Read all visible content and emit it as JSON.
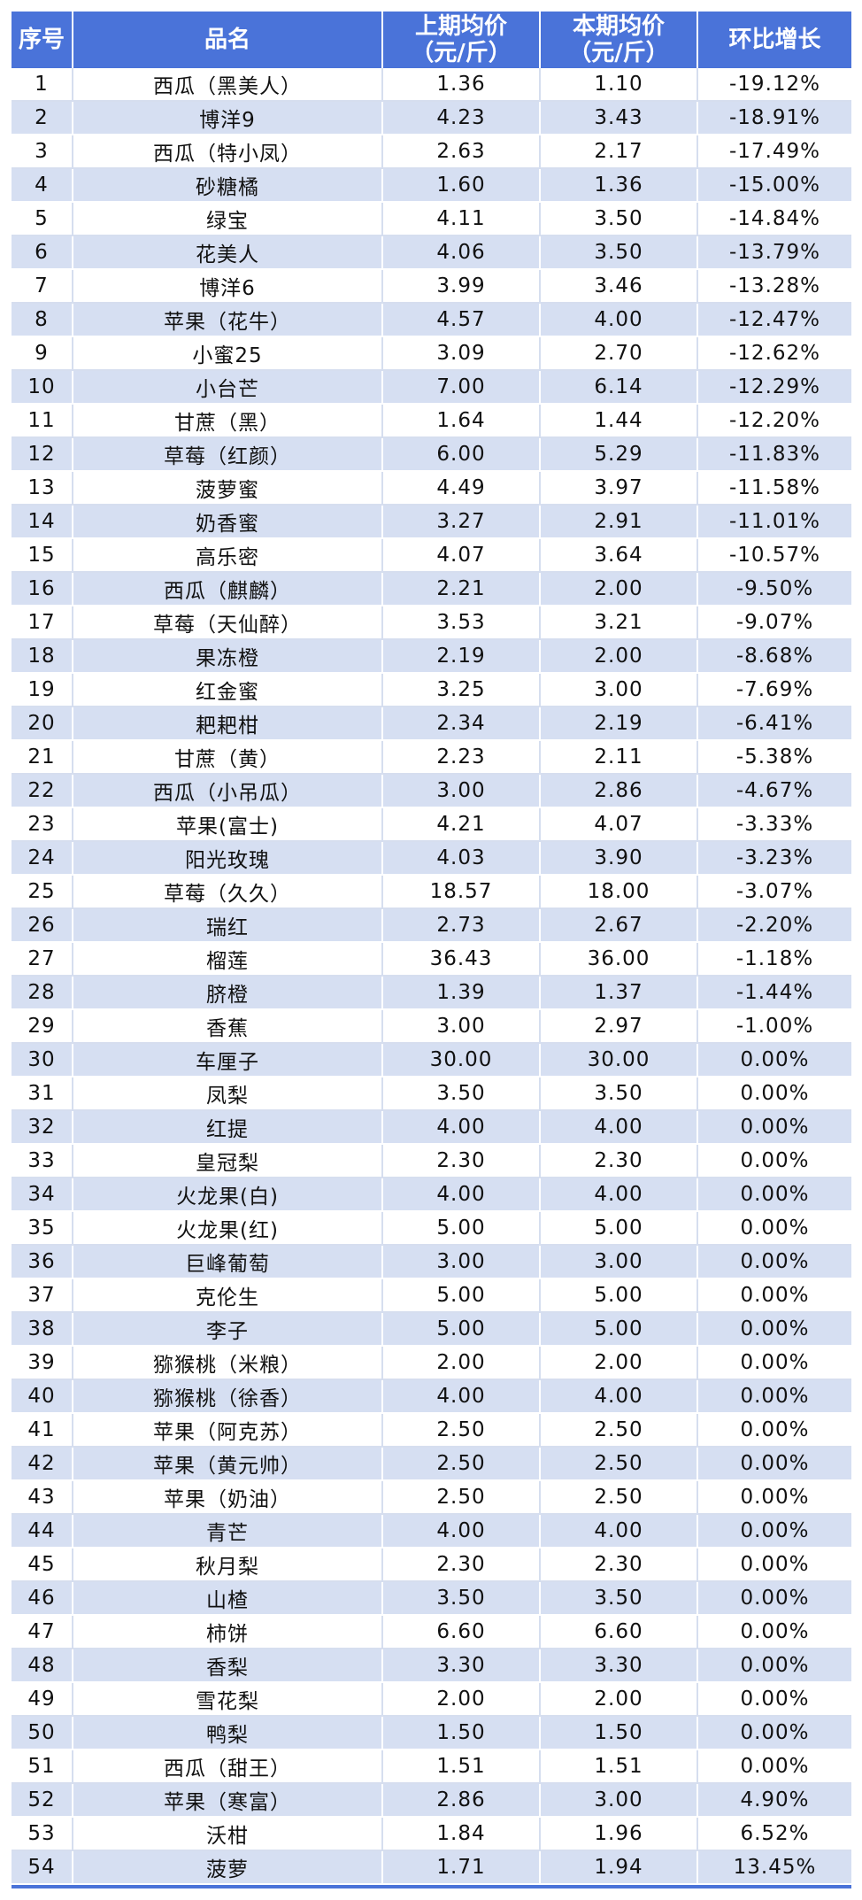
{
  "headers": {
    "index": "序号",
    "name": "品名",
    "prev_line1": "上期均价",
    "prev_line2": "（元/斤）",
    "curr_line1": "本期均价",
    "curr_line2": "（元/斤）",
    "change": "环比增长"
  },
  "colors": {
    "header_bg": "#4a73d9",
    "stripe": "#d6dff2"
  },
  "rows": [
    [
      "1",
      "西瓜（黑美人）",
      "1.36",
      "1.10",
      "-19.12%"
    ],
    [
      "2",
      "博洋9",
      "4.23",
      "3.43",
      "-18.91%"
    ],
    [
      "3",
      "西瓜（特小凤）",
      "2.63",
      "2.17",
      "-17.49%"
    ],
    [
      "4",
      "砂糖橘",
      "1.60",
      "1.36",
      "-15.00%"
    ],
    [
      "5",
      "绿宝",
      "4.11",
      "3.50",
      "-14.84%"
    ],
    [
      "6",
      "花美人",
      "4.06",
      "3.50",
      "-13.79%"
    ],
    [
      "7",
      "博洋6",
      "3.99",
      "3.46",
      "-13.28%"
    ],
    [
      "8",
      "苹果（花牛）",
      "4.57",
      "4.00",
      "-12.47%"
    ],
    [
      "9",
      "小蜜25",
      "3.09",
      "2.70",
      "-12.62%"
    ],
    [
      "10",
      "小台芒",
      "7.00",
      "6.14",
      "-12.29%"
    ],
    [
      "11",
      "甘蔗（黑）",
      "1.64",
      "1.44",
      "-12.20%"
    ],
    [
      "12",
      "草莓（红颜）",
      "6.00",
      "5.29",
      "-11.83%"
    ],
    [
      "13",
      "菠萝蜜",
      "4.49",
      "3.97",
      "-11.58%"
    ],
    [
      "14",
      "奶香蜜",
      "3.27",
      "2.91",
      "-11.01%"
    ],
    [
      "15",
      "高乐密",
      "4.07",
      "3.64",
      "-10.57%"
    ],
    [
      "16",
      "西瓜（麒麟）",
      "2.21",
      "2.00",
      "-9.50%"
    ],
    [
      "17",
      "草莓（天仙醉）",
      "3.53",
      "3.21",
      "-9.07%"
    ],
    [
      "18",
      "果冻橙",
      "2.19",
      "2.00",
      "-8.68%"
    ],
    [
      "19",
      "红金蜜",
      "3.25",
      "3.00",
      "-7.69%"
    ],
    [
      "20",
      "耙耙柑",
      "2.34",
      "2.19",
      "-6.41%"
    ],
    [
      "21",
      "甘蔗（黄）",
      "2.23",
      "2.11",
      "-5.38%"
    ],
    [
      "22",
      "西瓜（小吊瓜）",
      "3.00",
      "2.86",
      "-4.67%"
    ],
    [
      "23",
      "苹果(富士)",
      "4.21",
      "4.07",
      "-3.33%"
    ],
    [
      "24",
      "阳光玫瑰",
      "4.03",
      "3.90",
      "-3.23%"
    ],
    [
      "25",
      "草莓（久久）",
      "18.57",
      "18.00",
      "-3.07%"
    ],
    [
      "26",
      "瑞红",
      "2.73",
      "2.67",
      "-2.20%"
    ],
    [
      "27",
      "榴莲",
      "36.43",
      "36.00",
      "-1.18%"
    ],
    [
      "28",
      "脐橙",
      "1.39",
      "1.37",
      "-1.44%"
    ],
    [
      "29",
      "香蕉",
      "3.00",
      "2.97",
      "-1.00%"
    ],
    [
      "30",
      "车厘子",
      "30.00",
      "30.00",
      "0.00%"
    ],
    [
      "31",
      "凤梨",
      "3.50",
      "3.50",
      "0.00%"
    ],
    [
      "32",
      "红提",
      "4.00",
      "4.00",
      "0.00%"
    ],
    [
      "33",
      "皇冠梨",
      "2.30",
      "2.30",
      "0.00%"
    ],
    [
      "34",
      "火龙果(白)",
      "4.00",
      "4.00",
      "0.00%"
    ],
    [
      "35",
      "火龙果(红)",
      "5.00",
      "5.00",
      "0.00%"
    ],
    [
      "36",
      "巨峰葡萄",
      "3.00",
      "3.00",
      "0.00%"
    ],
    [
      "37",
      "克伦生",
      "5.00",
      "5.00",
      "0.00%"
    ],
    [
      "38",
      "李子",
      "5.00",
      "5.00",
      "0.00%"
    ],
    [
      "39",
      "猕猴桃（米粮）",
      "2.00",
      "2.00",
      "0.00%"
    ],
    [
      "40",
      "猕猴桃（徐香）",
      "4.00",
      "4.00",
      "0.00%"
    ],
    [
      "41",
      "苹果（阿克苏）",
      "2.50",
      "2.50",
      "0.00%"
    ],
    [
      "42",
      "苹果（黄元帅）",
      "2.50",
      "2.50",
      "0.00%"
    ],
    [
      "43",
      "苹果（奶油）",
      "2.50",
      "2.50",
      "0.00%"
    ],
    [
      "44",
      "青芒",
      "4.00",
      "4.00",
      "0.00%"
    ],
    [
      "45",
      "秋月梨",
      "2.30",
      "2.30",
      "0.00%"
    ],
    [
      "46",
      "山楂",
      "3.50",
      "3.50",
      "0.00%"
    ],
    [
      "47",
      "柿饼",
      "6.60",
      "6.60",
      "0.00%"
    ],
    [
      "48",
      "香梨",
      "3.30",
      "3.30",
      "0.00%"
    ],
    [
      "49",
      "雪花梨",
      "2.00",
      "2.00",
      "0.00%"
    ],
    [
      "50",
      "鸭梨",
      "1.50",
      "1.50",
      "0.00%"
    ],
    [
      "51",
      "西瓜（甜王）",
      "1.51",
      "1.51",
      "0.00%"
    ],
    [
      "52",
      "苹果（寒富）",
      "2.86",
      "3.00",
      "4.90%"
    ],
    [
      "53",
      "沃柑",
      "1.84",
      "1.96",
      "6.52%"
    ],
    [
      "54",
      "菠萝",
      "1.71",
      "1.94",
      "13.45%"
    ]
  ]
}
